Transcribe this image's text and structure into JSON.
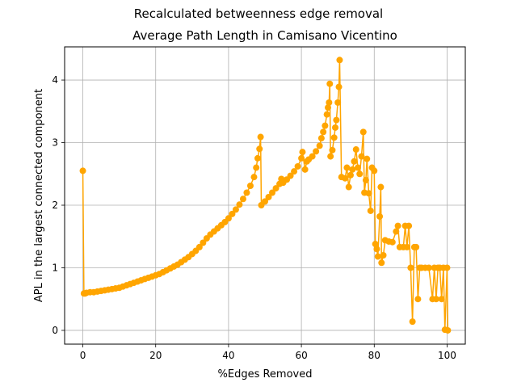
{
  "chart_data": {
    "type": "line",
    "suptitle": "Recalculated betweenness edge removal",
    "title": "Average Path Length in Camisano Vicentino",
    "xlabel": "%Edges Removed",
    "ylabel": "APL in the largest connected component",
    "xlim": [
      -5,
      105
    ],
    "ylim": [
      -0.22,
      4.53
    ],
    "xticks": [
      0,
      20,
      40,
      60,
      80,
      100
    ],
    "yticks": [
      0,
      1,
      2,
      3,
      4
    ],
    "grid": true,
    "series": [
      {
        "color": "#FFA500",
        "marker": "circle",
        "points": [
          [
            0,
            2.55
          ],
          [
            0.3,
            0.59
          ],
          [
            0.6,
            0.59
          ],
          [
            1,
            0.6
          ],
          [
            2,
            0.61
          ],
          [
            3,
            0.61
          ],
          [
            4,
            0.62
          ],
          [
            5,
            0.63
          ],
          [
            6,
            0.64
          ],
          [
            7,
            0.65
          ],
          [
            8,
            0.66
          ],
          [
            9,
            0.67
          ],
          [
            10,
            0.68
          ],
          [
            11,
            0.7
          ],
          [
            12,
            0.72
          ],
          [
            13,
            0.74
          ],
          [
            14,
            0.76
          ],
          [
            15,
            0.78
          ],
          [
            16,
            0.8
          ],
          [
            17,
            0.82
          ],
          [
            18,
            0.84
          ],
          [
            19,
            0.86
          ],
          [
            20,
            0.88
          ],
          [
            21,
            0.9
          ],
          [
            22,
            0.93
          ],
          [
            23,
            0.96
          ],
          [
            24,
            0.99
          ],
          [
            25,
            1.02
          ],
          [
            26,
            1.05
          ],
          [
            27,
            1.09
          ],
          [
            28,
            1.13
          ],
          [
            29,
            1.17
          ],
          [
            30,
            1.22
          ],
          [
            31,
            1.27
          ],
          [
            32,
            1.33
          ],
          [
            33,
            1.4
          ],
          [
            34,
            1.47
          ],
          [
            35,
            1.53
          ],
          [
            36,
            1.58
          ],
          [
            37,
            1.63
          ],
          [
            38,
            1.68
          ],
          [
            39,
            1.73
          ],
          [
            40,
            1.79
          ],
          [
            41,
            1.86
          ],
          [
            42,
            1.93
          ],
          [
            43,
            2.01
          ],
          [
            44,
            2.1
          ],
          [
            45,
            2.2
          ],
          [
            46,
            2.31
          ],
          [
            47,
            2.45
          ],
          [
            47.6,
            2.6
          ],
          [
            48,
            2.75
          ],
          [
            48.5,
            2.9
          ],
          [
            48.8,
            3.09
          ],
          [
            49,
            2.0
          ],
          [
            50,
            2.06
          ],
          [
            51,
            2.13
          ],
          [
            52,
            2.2
          ],
          [
            53,
            2.27
          ],
          [
            54,
            2.34
          ],
          [
            54.5,
            2.42
          ],
          [
            55,
            2.36
          ],
          [
            56,
            2.41
          ],
          [
            57,
            2.47
          ],
          [
            58,
            2.54
          ],
          [
            59,
            2.62
          ],
          [
            60,
            2.75
          ],
          [
            60.3,
            2.85
          ],
          [
            61,
            2.57
          ],
          [
            61.5,
            2.7
          ],
          [
            62,
            2.73
          ],
          [
            63,
            2.78
          ],
          [
            64,
            2.86
          ],
          [
            65,
            2.95
          ],
          [
            65.5,
            3.07
          ],
          [
            66,
            3.17
          ],
          [
            66.5,
            3.27
          ],
          [
            67,
            3.45
          ],
          [
            67.3,
            3.56
          ],
          [
            67.6,
            3.64
          ],
          [
            67.8,
            3.94
          ],
          [
            68,
            2.78
          ],
          [
            68.5,
            2.88
          ],
          [
            69,
            3.08
          ],
          [
            69.3,
            3.24
          ],
          [
            69.6,
            3.36
          ],
          [
            70,
            3.64
          ],
          [
            70.3,
            3.89
          ],
          [
            70.5,
            4.32
          ],
          [
            71,
            2.45
          ],
          [
            72,
            2.43
          ],
          [
            72.5,
            2.6
          ],
          [
            73,
            2.29
          ],
          [
            73.5,
            2.48
          ],
          [
            74,
            2.57
          ],
          [
            74.5,
            2.7
          ],
          [
            75,
            2.89
          ],
          [
            75.5,
            2.6
          ],
          [
            76,
            2.5
          ],
          [
            76.5,
            2.78
          ],
          [
            77,
            3.17
          ],
          [
            77.3,
            2.2
          ],
          [
            77.7,
            2.4
          ],
          [
            78,
            2.74
          ],
          [
            78.5,
            2.19
          ],
          [
            79,
            1.91
          ],
          [
            79.4,
            2.6
          ],
          [
            80,
            2.55
          ],
          [
            80.3,
            1.38
          ],
          [
            80.7,
            1.3
          ],
          [
            81,
            1.18
          ],
          [
            81.5,
            1.82
          ],
          [
            81.8,
            2.29
          ],
          [
            82,
            1.08
          ],
          [
            82.5,
            1.2
          ],
          [
            83,
            1.44
          ],
          [
            84,
            1.42
          ],
          [
            85,
            1.41
          ],
          [
            86,
            1.58
          ],
          [
            86.5,
            1.67
          ],
          [
            87,
            1.33
          ],
          [
            88,
            1.33
          ],
          [
            88.5,
            1.67
          ],
          [
            89,
            1.33
          ],
          [
            89.5,
            1.67
          ],
          [
            90,
            1.0
          ],
          [
            90.5,
            0.14
          ],
          [
            91,
            1.33
          ],
          [
            91.5,
            1.33
          ],
          [
            92,
            0.5
          ],
          [
            92.5,
            1.0
          ],
          [
            93,
            1.0
          ],
          [
            94,
            1.0
          ],
          [
            95,
            1.0
          ],
          [
            96,
            0.5
          ],
          [
            96.5,
            1.0
          ],
          [
            97,
            0.5
          ],
          [
            97.5,
            1.0
          ],
          [
            98,
            1.0
          ],
          [
            98.5,
            0.5
          ],
          [
            99,
            1.0
          ],
          [
            99.4,
            0.01
          ],
          [
            100,
            1.0
          ],
          [
            100.2,
            0.0
          ]
        ]
      }
    ]
  }
}
